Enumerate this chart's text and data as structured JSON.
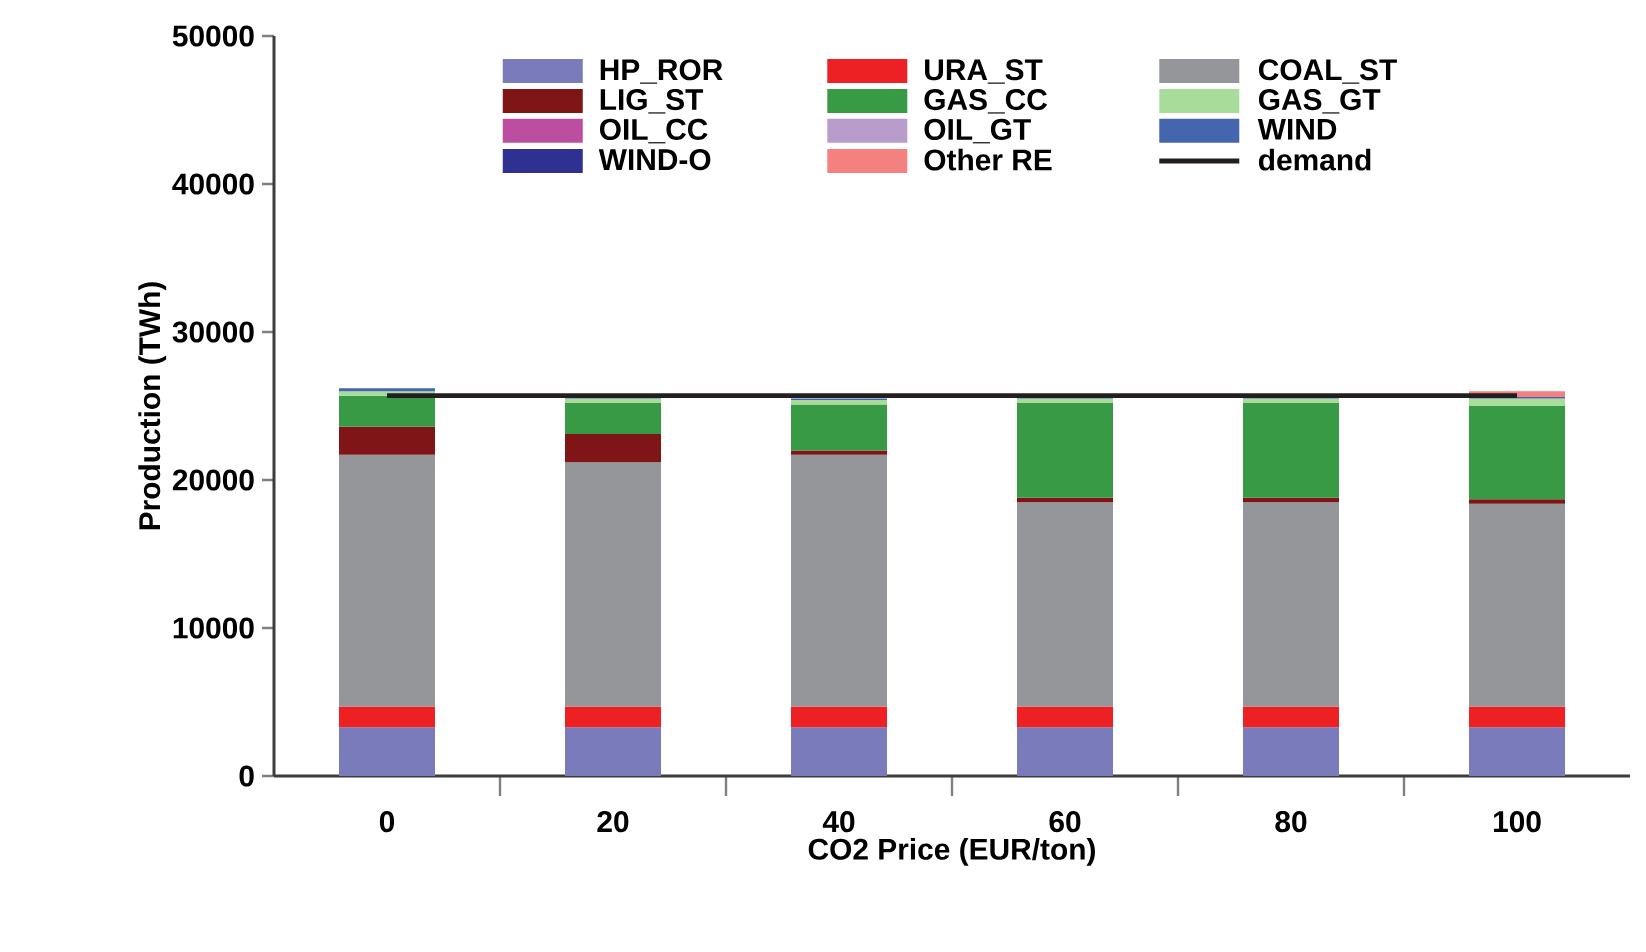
{
  "chart_data": {
    "type": "bar",
    "stacked": true,
    "xlabel": "CO2 Price (EUR/ton)",
    "ylabel": "Production (TWh)",
    "categories": [
      "0",
      "20",
      "40",
      "60",
      "80",
      "100"
    ],
    "ylim": [
      0,
      50000
    ],
    "yticks": [
      0,
      10000,
      20000,
      30000,
      40000,
      50000
    ],
    "grid": false,
    "legend": "top",
    "series": [
      {
        "name": "HP_ROR",
        "color": "#7a7bbb",
        "values": [
          3300,
          3300,
          3300,
          3300,
          3300,
          3300
        ]
      },
      {
        "name": "URA_ST",
        "color": "#ed2024",
        "values": [
          1400,
          1400,
          1400,
          1400,
          1400,
          1400
        ]
      },
      {
        "name": "COAL_ST",
        "color": "#959699",
        "values": [
          17000,
          16500,
          17000,
          13800,
          13800,
          13700
        ]
      },
      {
        "name": "LIG_ST",
        "color": "#7f1517",
        "values": [
          1900,
          1900,
          300,
          300,
          300,
          300
        ]
      },
      {
        "name": "GAS_CC",
        "color": "#389a45",
        "values": [
          2100,
          2100,
          3100,
          6400,
          6400,
          6300
        ]
      },
      {
        "name": "GAS_GT",
        "color": "#a8dc9a",
        "values": [
          300,
          300,
          300,
          300,
          300,
          500
        ]
      },
      {
        "name": "OIL_CC",
        "color": "#bb4ea0",
        "values": [
          0,
          0,
          0,
          0,
          0,
          0
        ]
      },
      {
        "name": "OIL_GT",
        "color": "#b89ccb",
        "values": [
          0,
          0,
          0,
          0,
          0,
          0
        ]
      },
      {
        "name": "WIND",
        "color": "#4565ae",
        "values": [
          200,
          100,
          100,
          100,
          100,
          100
        ]
      },
      {
        "name": "WIND-O",
        "color": "#2e3192",
        "values": [
          0,
          0,
          0,
          0,
          0,
          0
        ]
      },
      {
        "name": "Other RE",
        "color": "#f48080",
        "values": [
          0,
          0,
          0,
          0,
          0,
          400
        ]
      },
      {
        "name": "demand",
        "type": "line",
        "color": "#231f20",
        "values": [
          25700,
          25700,
          25700,
          25700,
          25700,
          25700
        ]
      }
    ]
  }
}
